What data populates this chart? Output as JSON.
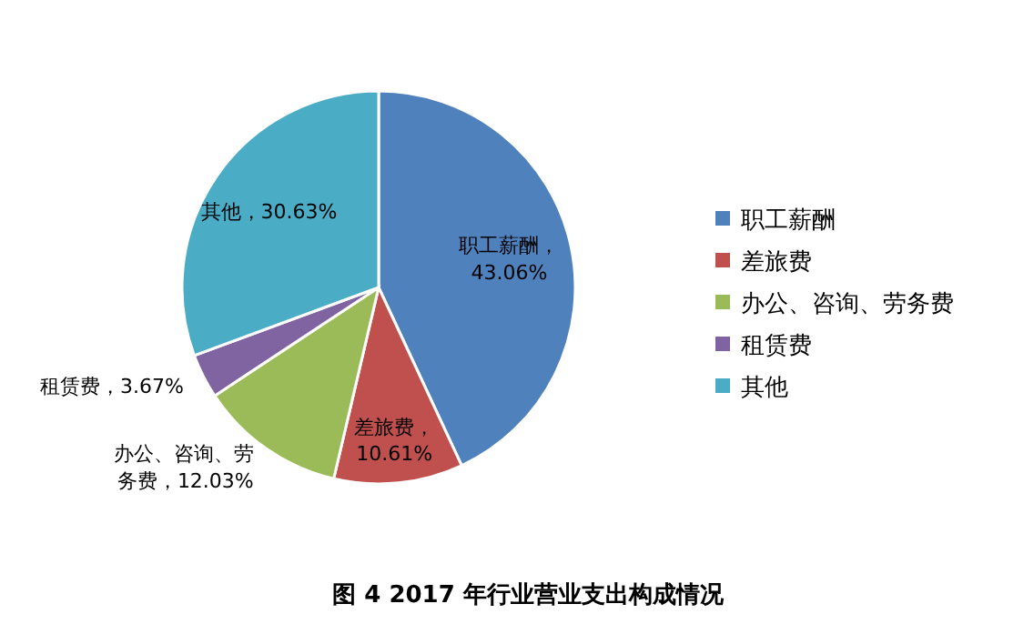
{
  "chart_data": {
    "type": "pie",
    "title": "图 4   2017 年行业营业支出构成情况",
    "categories": [
      "职工薪酬",
      "差旅费",
      "办公、咨询、劳务费",
      "租赁费",
      "其他"
    ],
    "values": [
      43.06,
      10.61,
      12.03,
      3.67,
      30.63
    ],
    "colors": [
      "#4f81bd",
      "#c0504d",
      "#9bbb59",
      "#8064a2",
      "#4bacc6"
    ],
    "value_labels": [
      "职工薪酬，43.06%",
      "差旅费，10.61%",
      "办公、咨询、劳务费，12.03%",
      "租赁费，3.67%",
      "其他，30.63%"
    ],
    "legend": "right"
  }
}
